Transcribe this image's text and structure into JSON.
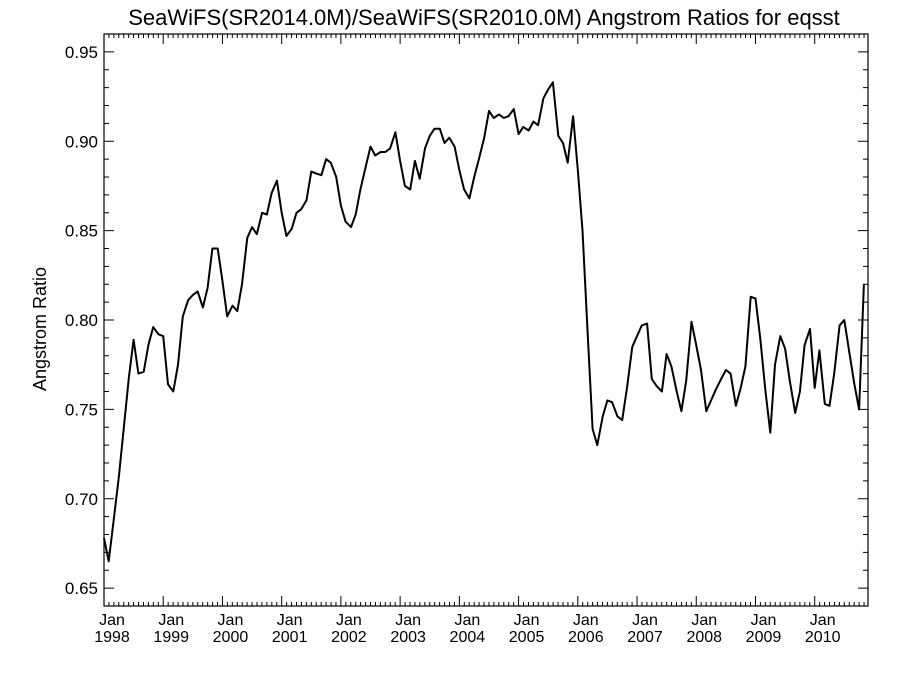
{
  "chart_data": {
    "type": "line",
    "title": "SeaWiFS(SR2014.0M)/SeaWiFS(SR2010.0M)  Angstrom Ratios for eqsst",
    "xlabel": "",
    "ylabel": "Angstrom Ratio",
    "ylim": [
      0.64,
      0.96
    ],
    "xlim": [
      1998.0,
      2010.9
    ],
    "y_ticks": [
      {
        "value": 0.65,
        "label": "0.65"
      },
      {
        "value": 0.7,
        "label": "0.70"
      },
      {
        "value": 0.75,
        "label": "0.75"
      },
      {
        "value": 0.8,
        "label": "0.80"
      },
      {
        "value": 0.85,
        "label": "0.85"
      },
      {
        "value": 0.9,
        "label": "0.90"
      },
      {
        "value": 0.95,
        "label": "0.95"
      }
    ],
    "x_ticks": [
      {
        "value": 1998,
        "month": "Jan",
        "year": "1998"
      },
      {
        "value": 1999,
        "month": "Jan",
        "year": "1999"
      },
      {
        "value": 2000,
        "month": "Jan",
        "year": "2000"
      },
      {
        "value": 2001,
        "month": "Jan",
        "year": "2001"
      },
      {
        "value": 2002,
        "month": "Jan",
        "year": "2002"
      },
      {
        "value": 2003,
        "month": "Jan",
        "year": "2003"
      },
      {
        "value": 2004,
        "month": "Jan",
        "year": "2004"
      },
      {
        "value": 2005,
        "month": "Jan",
        "year": "2005"
      },
      {
        "value": 2006,
        "month": "Jan",
        "year": "2006"
      },
      {
        "value": 2007,
        "month": "Jan",
        "year": "2007"
      },
      {
        "value": 2008,
        "month": "Jan",
        "year": "2008"
      },
      {
        "value": 2009,
        "month": "Jan",
        "year": "2009"
      },
      {
        "value": 2010,
        "month": "Jan",
        "year": "2010"
      }
    ],
    "grid": false,
    "series": [
      {
        "x": [
          1998.0,
          1998.08,
          1998.17,
          1998.25,
          1998.33,
          1998.42,
          1998.5,
          1998.58,
          1998.67,
          1998.75,
          1998.83,
          1998.92,
          1999.0,
          1999.08,
          1999.17,
          1999.25,
          1999.33,
          1999.42,
          1999.5,
          1999.58,
          1999.67,
          1999.75,
          1999.83,
          1999.92,
          2000.0,
          2000.08,
          2000.17,
          2000.25,
          2000.33,
          2000.42,
          2000.5,
          2000.58,
          2000.67,
          2000.75,
          2000.83,
          2000.92,
          2001.0,
          2001.08,
          2001.17,
          2001.25,
          2001.33,
          2001.42,
          2001.5,
          2001.58,
          2001.67,
          2001.75,
          2001.83,
          2001.92,
          2002.0,
          2002.08,
          2002.17,
          2002.25,
          2002.33,
          2002.42,
          2002.5,
          2002.58,
          2002.67,
          2002.75,
          2002.83,
          2002.92,
          2003.0,
          2003.08,
          2003.17,
          2003.25,
          2003.33,
          2003.42,
          2003.5,
          2003.58,
          2003.67,
          2003.75,
          2003.83,
          2003.92,
          2004.0,
          2004.08,
          2004.17,
          2004.25,
          2004.33,
          2004.42,
          2004.5,
          2004.58,
          2004.67,
          2004.75,
          2004.83,
          2004.92,
          2005.0,
          2005.08,
          2005.17,
          2005.25,
          2005.33,
          2005.42,
          2005.5,
          2005.58,
          2005.67,
          2005.75,
          2005.83,
          2005.92,
          2006.0,
          2006.08,
          2006.17,
          2006.25,
          2006.33,
          2006.42,
          2006.5,
          2006.58,
          2006.67,
          2006.75,
          2006.83,
          2006.92,
          2007.0,
          2007.08,
          2007.17,
          2007.25,
          2007.33,
          2007.42,
          2007.5,
          2007.58,
          2007.67,
          2007.75,
          2007.83,
          2007.92,
          2008.0,
          2008.08,
          2008.17,
          2008.25,
          2008.33,
          2008.42,
          2008.5,
          2008.58,
          2008.67,
          2008.75,
          2008.83,
          2008.92,
          2009.0,
          2009.08,
          2009.17,
          2009.25,
          2009.33,
          2009.42,
          2009.5,
          2009.58,
          2009.67,
          2009.75,
          2009.83,
          2009.92,
          2010.0,
          2010.08,
          2010.17,
          2010.25,
          2010.33,
          2010.42,
          2010.5,
          2010.58,
          2010.67,
          2010.75,
          2010.83
        ],
        "values": [
          0.678,
          0.665,
          0.69,
          0.712,
          0.738,
          0.768,
          0.789,
          0.77,
          0.771,
          0.786,
          0.796,
          0.792,
          0.791,
          0.764,
          0.76,
          0.775,
          0.802,
          0.811,
          0.814,
          0.816,
          0.807,
          0.818,
          0.84,
          0.84,
          0.822,
          0.802,
          0.808,
          0.805,
          0.82,
          0.846,
          0.852,
          0.848,
          0.86,
          0.859,
          0.871,
          0.878,
          0.86,
          0.847,
          0.851,
          0.86,
          0.862,
          0.867,
          0.883,
          0.882,
          0.881,
          0.89,
          0.888,
          0.88,
          0.864,
          0.855,
          0.852,
          0.859,
          0.873,
          0.886,
          0.897,
          0.892,
          0.894,
          0.894,
          0.896,
          0.905,
          0.889,
          0.875,
          0.873,
          0.889,
          0.879,
          0.896,
          0.903,
          0.907,
          0.907,
          0.899,
          0.902,
          0.897,
          0.884,
          0.873,
          0.868,
          0.88,
          0.89,
          0.902,
          0.917,
          0.913,
          0.915,
          0.913,
          0.914,
          0.918,
          0.904,
          0.908,
          0.906,
          0.911,
          0.909,
          0.924,
          0.929,
          0.933,
          0.903,
          0.899,
          0.888,
          0.914,
          0.884,
          0.85,
          0.79,
          0.739,
          0.73,
          0.746,
          0.755,
          0.754,
          0.746,
          0.744,
          0.762,
          0.785,
          0.791,
          0.797,
          0.798,
          0.767,
          0.763,
          0.76,
          0.781,
          0.774,
          0.76,
          0.749,
          0.766,
          0.799,
          0.786,
          0.772,
          0.749,
          0.755,
          0.761,
          0.767,
          0.772,
          0.77,
          0.752,
          0.762,
          0.774,
          0.813,
          0.812,
          0.79,
          0.76,
          0.737,
          0.775,
          0.791,
          0.784,
          0.766,
          0.748,
          0.76,
          0.786,
          0.795,
          0.762,
          0.783,
          0.753,
          0.752,
          0.77,
          0.797,
          0.8,
          0.783,
          0.764,
          0.75,
          0.82
        ]
      }
    ]
  }
}
